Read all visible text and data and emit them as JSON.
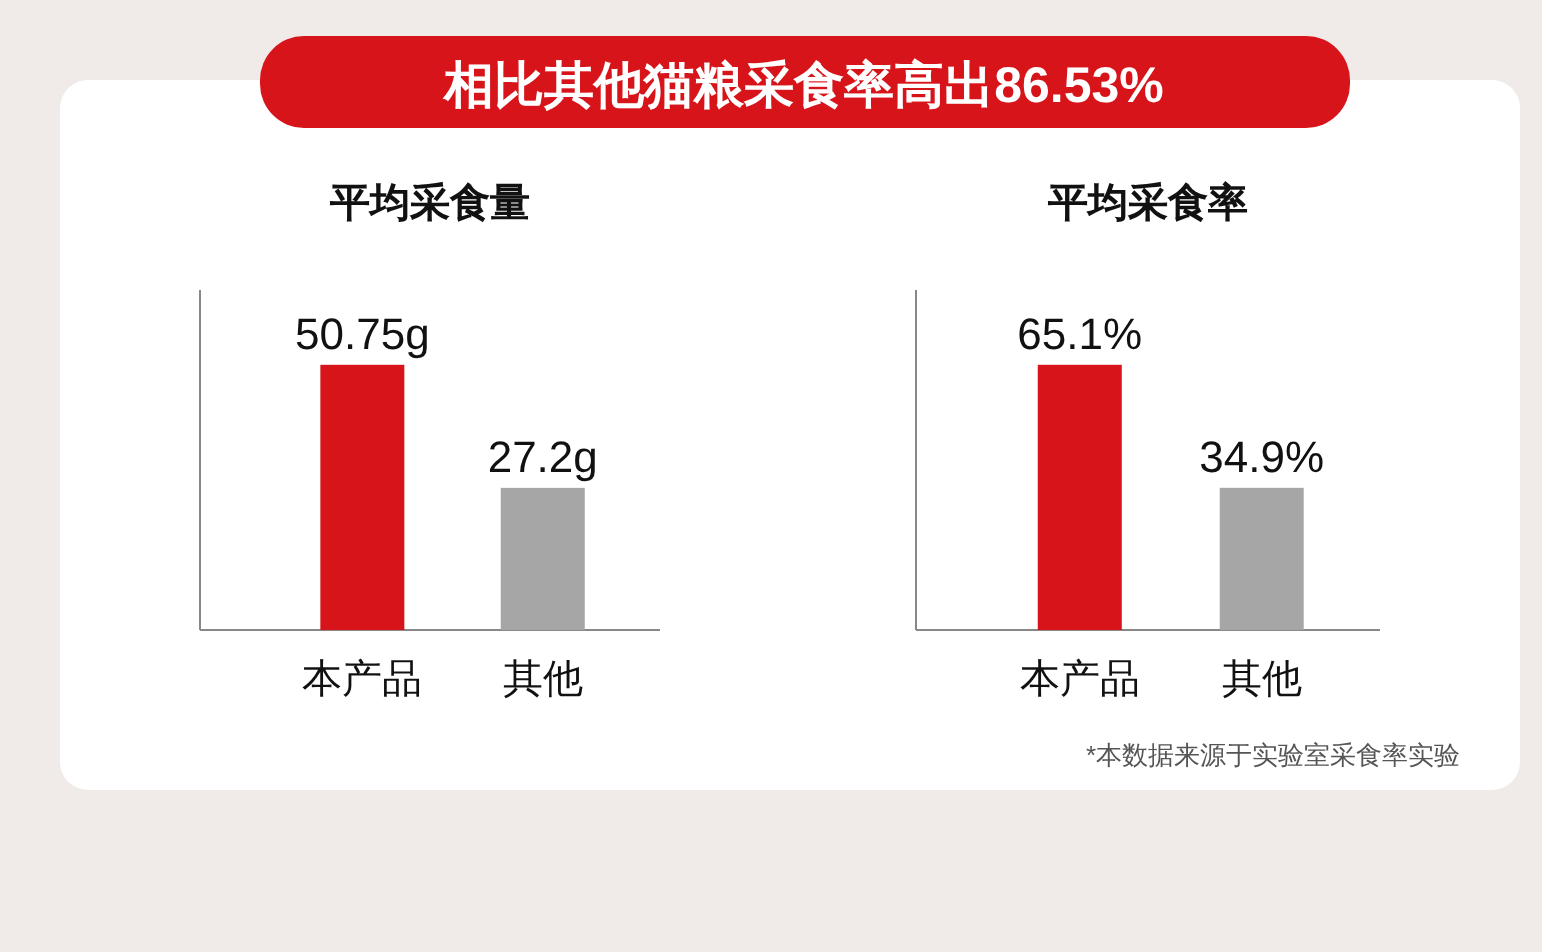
{
  "chart_data": [
    {
      "type": "other",
      "title": "相比其他猫粮采食率高出86.53%",
      "annotations": [
        "*本数据来源于实验室采食率实验"
      ]
    },
    {
      "type": "bar",
      "title": "平均采食量",
      "categories": [
        "本产品",
        "其他"
      ],
      "values": [
        50.75,
        27.2
      ],
      "colors": [
        "#d7141a",
        "#a6a6a6"
      ],
      "value_labels": [
        "50.75g",
        "27.2g"
      ]
    },
    {
      "type": "bar",
      "title": "平均采食率",
      "categories": [
        "本产品",
        "其他"
      ],
      "values": [
        65.1,
        34.9
      ],
      "colors": [
        "#d7141a",
        "#a6a6a6"
      ],
      "value_labels": [
        "65.1%",
        "34.9%"
      ]
    }
  ]
}
